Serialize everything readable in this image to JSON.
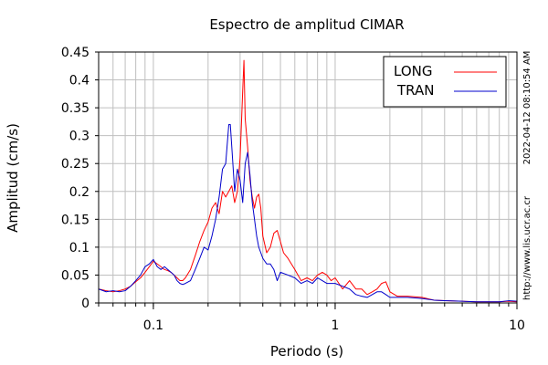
{
  "chart_data": {
    "type": "line",
    "title": "Espectro de amplitud CIMAR",
    "xlabel": "Periodo (s)",
    "ylabel": "Amplitud (cm/s)",
    "xscale": "log",
    "xlim": [
      0.05,
      10
    ],
    "ylim": [
      0,
      0.45
    ],
    "x_ticks": [
      0.1,
      1,
      10
    ],
    "x_tick_labels": [
      "0.1",
      "1",
      "10"
    ],
    "y_ticks": [
      0,
      0.05,
      0.1,
      0.15,
      0.2,
      0.25,
      0.3,
      0.35,
      0.4,
      0.45
    ],
    "y_tick_labels": [
      "0",
      "0.05",
      "0.1",
      "0.15",
      "0.2",
      "0.25",
      "0.3",
      "0.35",
      "0.4",
      "0.45"
    ],
    "grid": true,
    "legend_position": "top-right",
    "series": [
      {
        "name": "LONG",
        "color": "#ff0000",
        "x": [
          0.05,
          0.055,
          0.06,
          0.065,
          0.07,
          0.075,
          0.08,
          0.085,
          0.09,
          0.095,
          0.1,
          0.105,
          0.11,
          0.115,
          0.12,
          0.125,
          0.13,
          0.135,
          0.14,
          0.145,
          0.15,
          0.16,
          0.17,
          0.18,
          0.19,
          0.2,
          0.21,
          0.22,
          0.23,
          0.24,
          0.25,
          0.26,
          0.27,
          0.28,
          0.29,
          0.3,
          0.305,
          0.31,
          0.315,
          0.32,
          0.33,
          0.34,
          0.35,
          0.36,
          0.37,
          0.38,
          0.39,
          0.4,
          0.42,
          0.44,
          0.46,
          0.48,
          0.5,
          0.52,
          0.55,
          0.6,
          0.65,
          0.7,
          0.75,
          0.8,
          0.85,
          0.9,
          0.95,
          1.0,
          1.1,
          1.2,
          1.3,
          1.4,
          1.5,
          1.6,
          1.7,
          1.8,
          1.9,
          2.0,
          2.2,
          2.5,
          3.0,
          3.5,
          4.0,
          5.0,
          6.0,
          7.0,
          8.0,
          9.0,
          10.0
        ],
        "y": [
          0.025,
          0.022,
          0.02,
          0.022,
          0.025,
          0.03,
          0.038,
          0.045,
          0.055,
          0.065,
          0.075,
          0.07,
          0.065,
          0.06,
          0.058,
          0.055,
          0.05,
          0.045,
          0.04,
          0.04,
          0.045,
          0.06,
          0.085,
          0.11,
          0.13,
          0.145,
          0.17,
          0.18,
          0.16,
          0.2,
          0.19,
          0.2,
          0.21,
          0.18,
          0.2,
          0.26,
          0.32,
          0.38,
          0.435,
          0.33,
          0.28,
          0.22,
          0.19,
          0.17,
          0.19,
          0.195,
          0.17,
          0.12,
          0.09,
          0.1,
          0.125,
          0.13,
          0.11,
          0.09,
          0.08,
          0.06,
          0.04,
          0.045,
          0.04,
          0.05,
          0.055,
          0.05,
          0.04,
          0.045,
          0.025,
          0.04,
          0.025,
          0.025,
          0.015,
          0.02,
          0.025,
          0.035,
          0.038,
          0.02,
          0.012,
          0.012,
          0.01,
          0.005,
          0.004,
          0.003,
          0.002,
          0.002,
          0.002,
          0.003,
          0.002
        ]
      },
      {
        "name": "TRAN",
        "color": "#0000cc",
        "x": [
          0.05,
          0.055,
          0.06,
          0.065,
          0.07,
          0.075,
          0.08,
          0.085,
          0.09,
          0.095,
          0.1,
          0.105,
          0.11,
          0.115,
          0.12,
          0.125,
          0.13,
          0.135,
          0.14,
          0.145,
          0.15,
          0.16,
          0.17,
          0.18,
          0.19,
          0.2,
          0.21,
          0.22,
          0.23,
          0.24,
          0.25,
          0.26,
          0.265,
          0.27,
          0.28,
          0.29,
          0.3,
          0.31,
          0.32,
          0.33,
          0.34,
          0.35,
          0.36,
          0.37,
          0.38,
          0.39,
          0.4,
          0.42,
          0.44,
          0.46,
          0.48,
          0.5,
          0.55,
          0.6,
          0.65,
          0.7,
          0.75,
          0.8,
          0.85,
          0.9,
          0.95,
          1.0,
          1.1,
          1.2,
          1.3,
          1.4,
          1.5,
          1.6,
          1.7,
          1.8,
          1.9,
          2.0,
          2.2,
          2.5,
          3.0,
          3.5,
          4.0,
          5.0,
          6.0,
          7.0,
          8.0,
          9.0,
          10.0
        ],
        "y": [
          0.025,
          0.02,
          0.022,
          0.02,
          0.022,
          0.03,
          0.04,
          0.05,
          0.065,
          0.07,
          0.078,
          0.065,
          0.06,
          0.065,
          0.06,
          0.055,
          0.05,
          0.04,
          0.035,
          0.033,
          0.035,
          0.04,
          0.06,
          0.08,
          0.1,
          0.095,
          0.12,
          0.15,
          0.19,
          0.24,
          0.25,
          0.32,
          0.32,
          0.28,
          0.2,
          0.24,
          0.22,
          0.18,
          0.25,
          0.27,
          0.23,
          0.18,
          0.15,
          0.12,
          0.1,
          0.09,
          0.08,
          0.07,
          0.07,
          0.06,
          0.04,
          0.055,
          0.05,
          0.045,
          0.035,
          0.04,
          0.035,
          0.045,
          0.04,
          0.035,
          0.035,
          0.035,
          0.03,
          0.025,
          0.015,
          0.012,
          0.01,
          0.015,
          0.02,
          0.02,
          0.015,
          0.01,
          0.01,
          0.01,
          0.008,
          0.005,
          0.004,
          0.003,
          0.002,
          0.002,
          0.002,
          0.004,
          0.003
        ]
      }
    ]
  },
  "side_labels": {
    "timestamp": "2022-04-12 08:10:54 AM",
    "url": "http://www.lis.ucr.ac.cr"
  },
  "colors": {
    "grid": "#bfbfbf",
    "axes": "#000000",
    "background": "#ffffff"
  }
}
